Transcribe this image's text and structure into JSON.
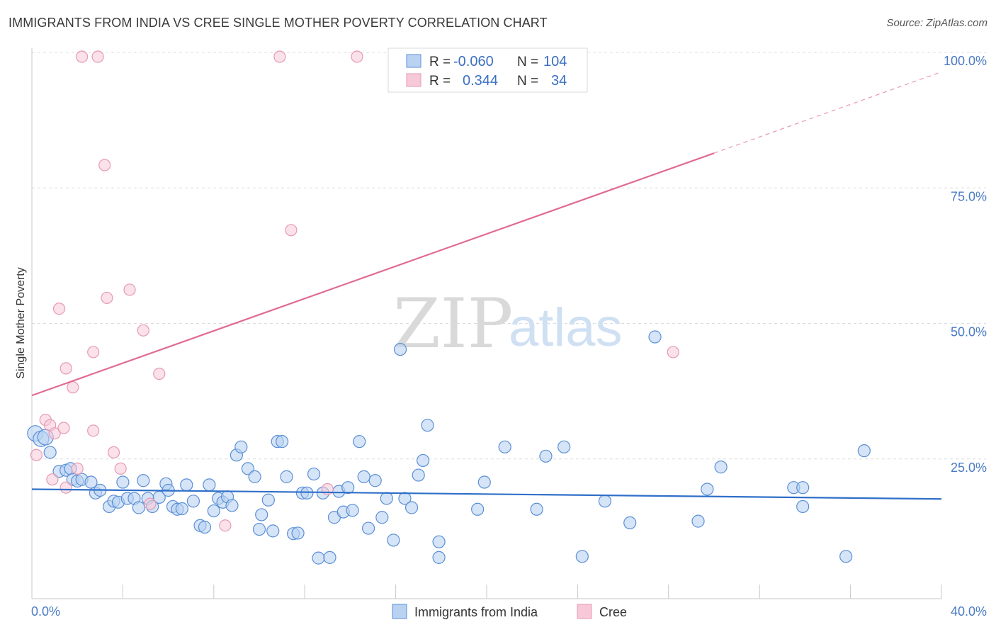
{
  "title": "IMMIGRANTS FROM INDIA VS CREE SINGLE MOTHER POVERTY CORRELATION CHART",
  "source": "Source: ZipAtlas.com",
  "watermark": {
    "zip": "ZIP",
    "atlas": "atlas"
  },
  "colors": {
    "india": "#5b8fd6",
    "india_fill": "#b9d2f1",
    "india_line": "#2f6fc9",
    "cree": "#e59ab3",
    "cree_fill": "#f7c8d7",
    "cree_line": "#e06b93",
    "axis_text": "#4a7bc4",
    "grid": "#dcdcdc"
  },
  "legend": {
    "india": {
      "r_label": "R =",
      "r_value": "-0.060",
      "n_label": "N =",
      "n_value": "104"
    },
    "cree": {
      "r_label": "R =",
      "r_value": "0.344",
      "n_label": "N =",
      "n_value": "34"
    }
  },
  "chart_data": {
    "type": "scatter",
    "title": "IMMIGRANTS FROM INDIA VS CREE SINGLE MOTHER POVERTY CORRELATION CHART",
    "xlabel": "",
    "ylabel": "Single Mother Poverty",
    "xlim": [
      0,
      40
    ],
    "ylim": [
      0,
      100
    ],
    "x_tick_labels": [
      "0.0%",
      "40.0%"
    ],
    "y_ticks": [
      25,
      50,
      75,
      100
    ],
    "y_tick_labels": [
      "25.0%",
      "50.0%",
      "75.0%",
      "100.0%"
    ],
    "legend_position": "bottom-center",
    "series": [
      {
        "name": "Immigrants from India",
        "trend": {
          "x0": 0,
          "y0": 20.2,
          "x1": 40,
          "y1": 18.4
        },
        "points": [
          [
            0.15,
            30.5
          ],
          [
            0.4,
            29.5
          ],
          [
            0.6,
            29.8
          ],
          [
            0.8,
            27.0
          ],
          [
            1.2,
            23.5
          ],
          [
            1.5,
            23.7
          ],
          [
            1.7,
            24.0
          ],
          [
            1.8,
            22.0
          ],
          [
            2.0,
            21.7
          ],
          [
            2.2,
            22.0
          ],
          [
            2.6,
            21.5
          ],
          [
            2.8,
            19.5
          ],
          [
            3.0,
            20.0
          ],
          [
            3.4,
            17.0
          ],
          [
            3.6,
            18.0
          ],
          [
            3.8,
            17.8
          ],
          [
            4.0,
            21.5
          ],
          [
            4.2,
            18.5
          ],
          [
            4.5,
            18.5
          ],
          [
            4.7,
            16.8
          ],
          [
            4.9,
            21.8
          ],
          [
            5.1,
            18.5
          ],
          [
            5.3,
            17.0
          ],
          [
            5.6,
            18.7
          ],
          [
            5.9,
            21.2
          ],
          [
            6.0,
            20.0
          ],
          [
            6.2,
            17.0
          ],
          [
            6.4,
            16.5
          ],
          [
            6.6,
            16.6
          ],
          [
            6.8,
            21.0
          ],
          [
            7.1,
            18.0
          ],
          [
            7.4,
            13.5
          ],
          [
            7.6,
            13.2
          ],
          [
            7.8,
            21.0
          ],
          [
            8.0,
            16.2
          ],
          [
            8.2,
            18.5
          ],
          [
            8.4,
            17.8
          ],
          [
            8.6,
            18.8
          ],
          [
            8.8,
            17.2
          ],
          [
            9.0,
            26.5
          ],
          [
            9.2,
            28.0
          ],
          [
            9.5,
            24.0
          ],
          [
            9.8,
            22.5
          ],
          [
            10.0,
            12.8
          ],
          [
            10.1,
            15.5
          ],
          [
            10.4,
            18.2
          ],
          [
            10.6,
            12.5
          ],
          [
            10.8,
            29.0
          ],
          [
            11.0,
            29.0
          ],
          [
            11.2,
            22.5
          ],
          [
            11.5,
            12.0
          ],
          [
            11.7,
            12.1
          ],
          [
            11.9,
            19.5
          ],
          [
            12.1,
            19.5
          ],
          [
            12.4,
            23.0
          ],
          [
            12.6,
            7.5
          ],
          [
            12.8,
            19.5
          ],
          [
            13.1,
            7.6
          ],
          [
            13.3,
            15.0
          ],
          [
            13.5,
            19.8
          ],
          [
            13.7,
            16.0
          ],
          [
            13.9,
            20.5
          ],
          [
            14.1,
            16.3
          ],
          [
            14.4,
            29.0
          ],
          [
            14.6,
            22.5
          ],
          [
            14.8,
            13.0
          ],
          [
            15.1,
            21.8
          ],
          [
            15.4,
            15.0
          ],
          [
            15.6,
            18.5
          ],
          [
            15.9,
            10.8
          ],
          [
            16.2,
            46.0
          ],
          [
            16.4,
            18.5
          ],
          [
            16.7,
            16.8
          ],
          [
            17.0,
            22.8
          ],
          [
            17.2,
            25.5
          ],
          [
            17.4,
            32.0
          ],
          [
            17.9,
            10.5
          ],
          [
            17.9,
            7.6
          ],
          [
            19.6,
            16.5
          ],
          [
            19.9,
            21.5
          ],
          [
            20.8,
            28.0
          ],
          [
            22.2,
            16.5
          ],
          [
            22.6,
            26.3
          ],
          [
            23.4,
            28.0
          ],
          [
            24.2,
            7.8
          ],
          [
            25.2,
            18.0
          ],
          [
            26.3,
            14.0
          ],
          [
            27.4,
            48.3
          ],
          [
            29.3,
            14.3
          ],
          [
            29.7,
            20.2
          ],
          [
            30.3,
            24.3
          ],
          [
            33.5,
            20.5
          ],
          [
            33.9,
            17.0
          ],
          [
            33.9,
            20.5
          ],
          [
            35.8,
            7.8
          ],
          [
            36.6,
            27.3
          ]
        ]
      },
      {
        "name": "Cree",
        "trend": {
          "x0": 0,
          "y0": 37.5,
          "x1": 30,
          "y1": 82.2,
          "dash_to": [
            40,
            97.2
          ]
        },
        "points": [
          [
            0.2,
            26.5
          ],
          [
            0.6,
            33.0
          ],
          [
            0.8,
            32.0
          ],
          [
            1.0,
            30.5
          ],
          [
            0.9,
            22.0
          ],
          [
            1.2,
            53.5
          ],
          [
            1.4,
            31.5
          ],
          [
            1.5,
            42.5
          ],
          [
            1.5,
            20.5
          ],
          [
            1.8,
            39.0
          ],
          [
            2.0,
            24.0
          ],
          [
            2.2,
            100.0
          ],
          [
            2.7,
            45.5
          ],
          [
            2.7,
            31.0
          ],
          [
            2.9,
            100.0
          ],
          [
            3.2,
            80.0
          ],
          [
            3.3,
            55.5
          ],
          [
            3.6,
            27.0
          ],
          [
            3.9,
            24.0
          ],
          [
            4.3,
            57.0
          ],
          [
            4.9,
            49.5
          ],
          [
            5.2,
            17.5
          ],
          [
            5.6,
            41.5
          ],
          [
            8.5,
            13.5
          ],
          [
            10.9,
            100.0
          ],
          [
            11.4,
            68.0
          ],
          [
            13.0,
            20.2
          ],
          [
            14.3,
            100.0
          ],
          [
            28.2,
            45.5
          ]
        ]
      }
    ]
  },
  "bottom_legend": {
    "india": "Immigrants from India",
    "cree": "Cree"
  }
}
